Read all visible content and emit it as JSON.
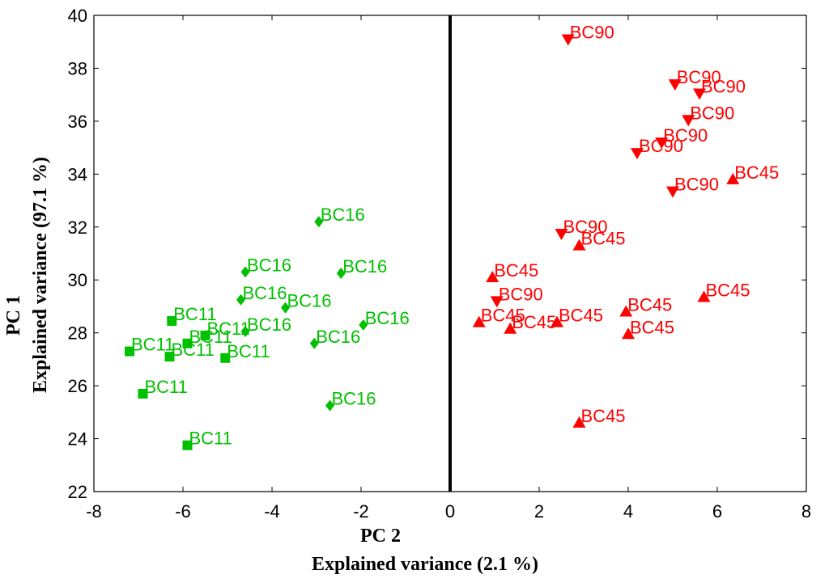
{
  "chart_data": {
    "type": "scatter",
    "title": "",
    "xlabel": "PC 2",
    "xlabel_sub": "Explained variance (2.1 %)",
    "ylabel": "PC 1",
    "ylabel_sub": "Explained variance (97.1 %)",
    "xlim": [
      -8,
      8
    ],
    "ylim": [
      22,
      40
    ],
    "xticks": [
      -8,
      -6,
      -4,
      -2,
      0,
      2,
      4,
      6,
      8
    ],
    "yticks": [
      22,
      24,
      26,
      28,
      30,
      32,
      34,
      36,
      38,
      40
    ],
    "vline_x": 0,
    "grid": false,
    "colors": {
      "BC11": "#00c000",
      "BC16": "#00c000",
      "BC45": "#ff0000",
      "BC90": "#ff0000"
    },
    "series": [
      {
        "name": "BC11",
        "marker": "square",
        "points": [
          {
            "x": -7.2,
            "y": 27.3,
            "label": "BC11"
          },
          {
            "x": -6.9,
            "y": 25.7,
            "label": "BC11"
          },
          {
            "x": -6.25,
            "y": 28.45,
            "label": "BC11"
          },
          {
            "x": -6.3,
            "y": 27.1,
            "label": "BC11"
          },
          {
            "x": -5.9,
            "y": 27.6,
            "label": "BC11"
          },
          {
            "x": -5.5,
            "y": 27.9,
            "label": "BC11"
          },
          {
            "x": -5.05,
            "y": 27.05,
            "label": "BC11"
          },
          {
            "x": -5.9,
            "y": 23.75,
            "label": "BC11"
          }
        ]
      },
      {
        "name": "BC16",
        "marker": "diamond",
        "points": [
          {
            "x": -2.95,
            "y": 32.2,
            "label": "BC16"
          },
          {
            "x": -4.6,
            "y": 30.3,
            "label": "BC16"
          },
          {
            "x": -2.45,
            "y": 30.25,
            "label": "BC16"
          },
          {
            "x": -4.7,
            "y": 29.25,
            "label": "BC16"
          },
          {
            "x": -3.7,
            "y": 28.95,
            "label": "BC16"
          },
          {
            "x": -4.6,
            "y": 28.05,
            "label": "BC16"
          },
          {
            "x": -1.95,
            "y": 28.3,
            "label": "BC16"
          },
          {
            "x": -3.05,
            "y": 27.6,
            "label": "BC16"
          },
          {
            "x": -2.7,
            "y": 25.25,
            "label": "BC16"
          }
        ]
      },
      {
        "name": "BC45",
        "marker": "triangle-up",
        "points": [
          {
            "x": 6.35,
            "y": 33.8,
            "label": "BC45"
          },
          {
            "x": 2.9,
            "y": 31.3,
            "label": "BC45"
          },
          {
            "x": 0.95,
            "y": 30.1,
            "label": "BC45"
          },
          {
            "x": 5.7,
            "y": 29.35,
            "label": "BC45"
          },
          {
            "x": 0.65,
            "y": 28.4,
            "label": "BC45"
          },
          {
            "x": 1.35,
            "y": 28.15,
            "label": "BC45"
          },
          {
            "x": 2.4,
            "y": 28.4,
            "label": "BC45"
          },
          {
            "x": 3.95,
            "y": 28.8,
            "label": "BC45"
          },
          {
            "x": 4.0,
            "y": 27.95,
            "label": "BC45"
          },
          {
            "x": 2.9,
            "y": 24.6,
            "label": "BC45"
          }
        ]
      },
      {
        "name": "BC90",
        "marker": "triangle-down",
        "points": [
          {
            "x": 2.65,
            "y": 39.1,
            "label": "BC90"
          },
          {
            "x": 5.05,
            "y": 37.4,
            "label": "BC90"
          },
          {
            "x": 5.6,
            "y": 37.05,
            "label": "BC90"
          },
          {
            "x": 5.35,
            "y": 36.05,
            "label": "BC90"
          },
          {
            "x": 4.75,
            "y": 35.2,
            "label": "BC90"
          },
          {
            "x": 4.2,
            "y": 34.8,
            "label": "BC90"
          },
          {
            "x": 5.0,
            "y": 33.35,
            "label": "BC90"
          },
          {
            "x": 2.5,
            "y": 31.75,
            "label": "BC90"
          },
          {
            "x": 1.05,
            "y": 29.2,
            "label": "BC90"
          }
        ]
      }
    ]
  }
}
